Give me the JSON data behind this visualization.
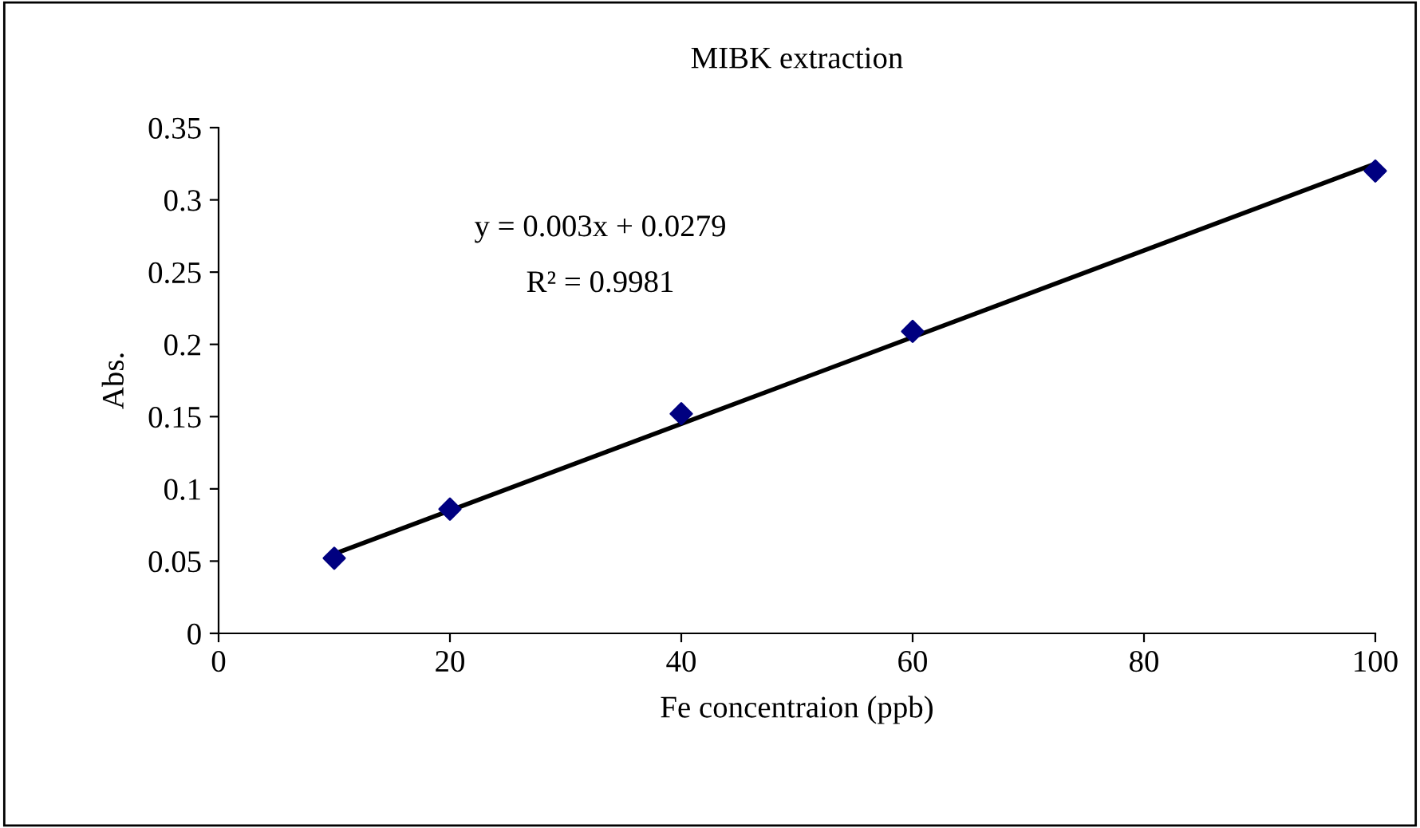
{
  "chart_data": {
    "type": "scatter",
    "title": "MIBK extraction",
    "xlabel": "Fe concentraion (ppb)",
    "ylabel": "Abs.",
    "x": [
      10,
      20,
      40,
      60,
      100
    ],
    "series": [
      {
        "color": "#000080",
        "values": [
          0.052,
          0.086,
          0.152,
          0.209,
          0.32
        ],
        "marker": "diamond"
      },
      {
        "type": "line",
        "color": "#000000",
        "x": [
          10,
          100
        ],
        "values": [
          0.055,
          0.325
        ],
        "marker": "none",
        "line_style": "solid"
      }
    ],
    "annotations": [
      "y = 0.003x + 0.0279",
      "R² = 0.9981"
    ],
    "xlim": [
      0,
      100
    ],
    "xticks": [
      0,
      20,
      40,
      60,
      80,
      100
    ],
    "ylim": [
      0,
      0.35
    ],
    "yticks": [
      0,
      0.05,
      0.1,
      0.15,
      0.2,
      0.25,
      0.3,
      0.35
    ],
    "grid": false,
    "legend": false
  }
}
